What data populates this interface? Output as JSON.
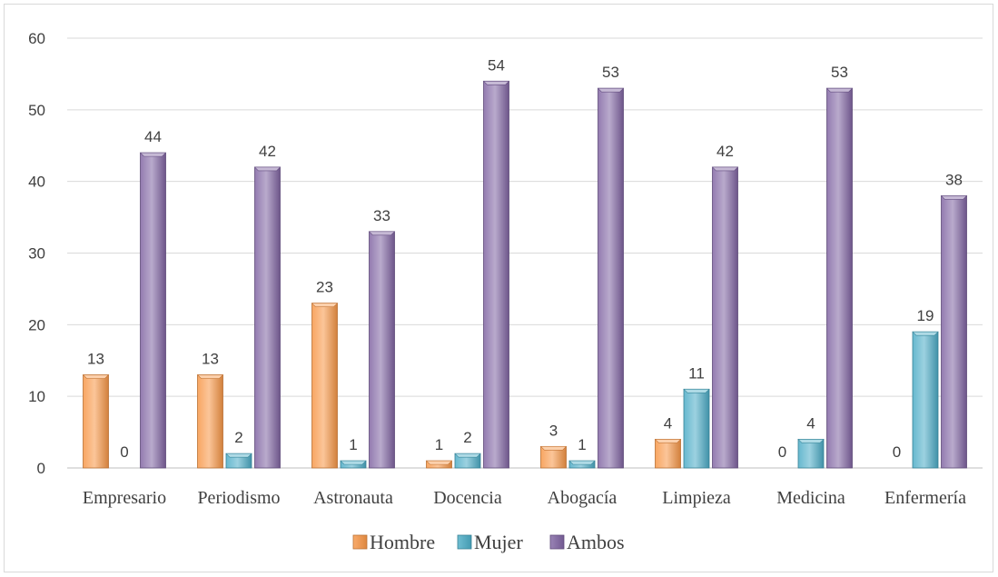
{
  "chart_data": {
    "type": "bar",
    "categories": [
      "Empresario",
      "Periodismo",
      "Astronauta",
      "Docencia",
      "Abogacía",
      "Limpieza",
      "Medicina",
      "Enfermería"
    ],
    "series": [
      {
        "name": "Hombre",
        "values": [
          13,
          13,
          23,
          1,
          3,
          4,
          0,
          0
        ],
        "color": "#f79646"
      },
      {
        "name": "Mujer",
        "values": [
          0,
          2,
          1,
          2,
          1,
          11,
          4,
          19
        ],
        "color": "#4bacc6"
      },
      {
        "name": "Ambos",
        "values": [
          44,
          42,
          33,
          54,
          53,
          42,
          53,
          38
        ],
        "color": "#8064a2"
      }
    ],
    "ylim": [
      0,
      60
    ],
    "yticks": [
      0,
      10,
      20,
      30,
      40,
      50,
      60
    ],
    "grid": true,
    "legend_position": "bottom",
    "data_labels": true
  }
}
